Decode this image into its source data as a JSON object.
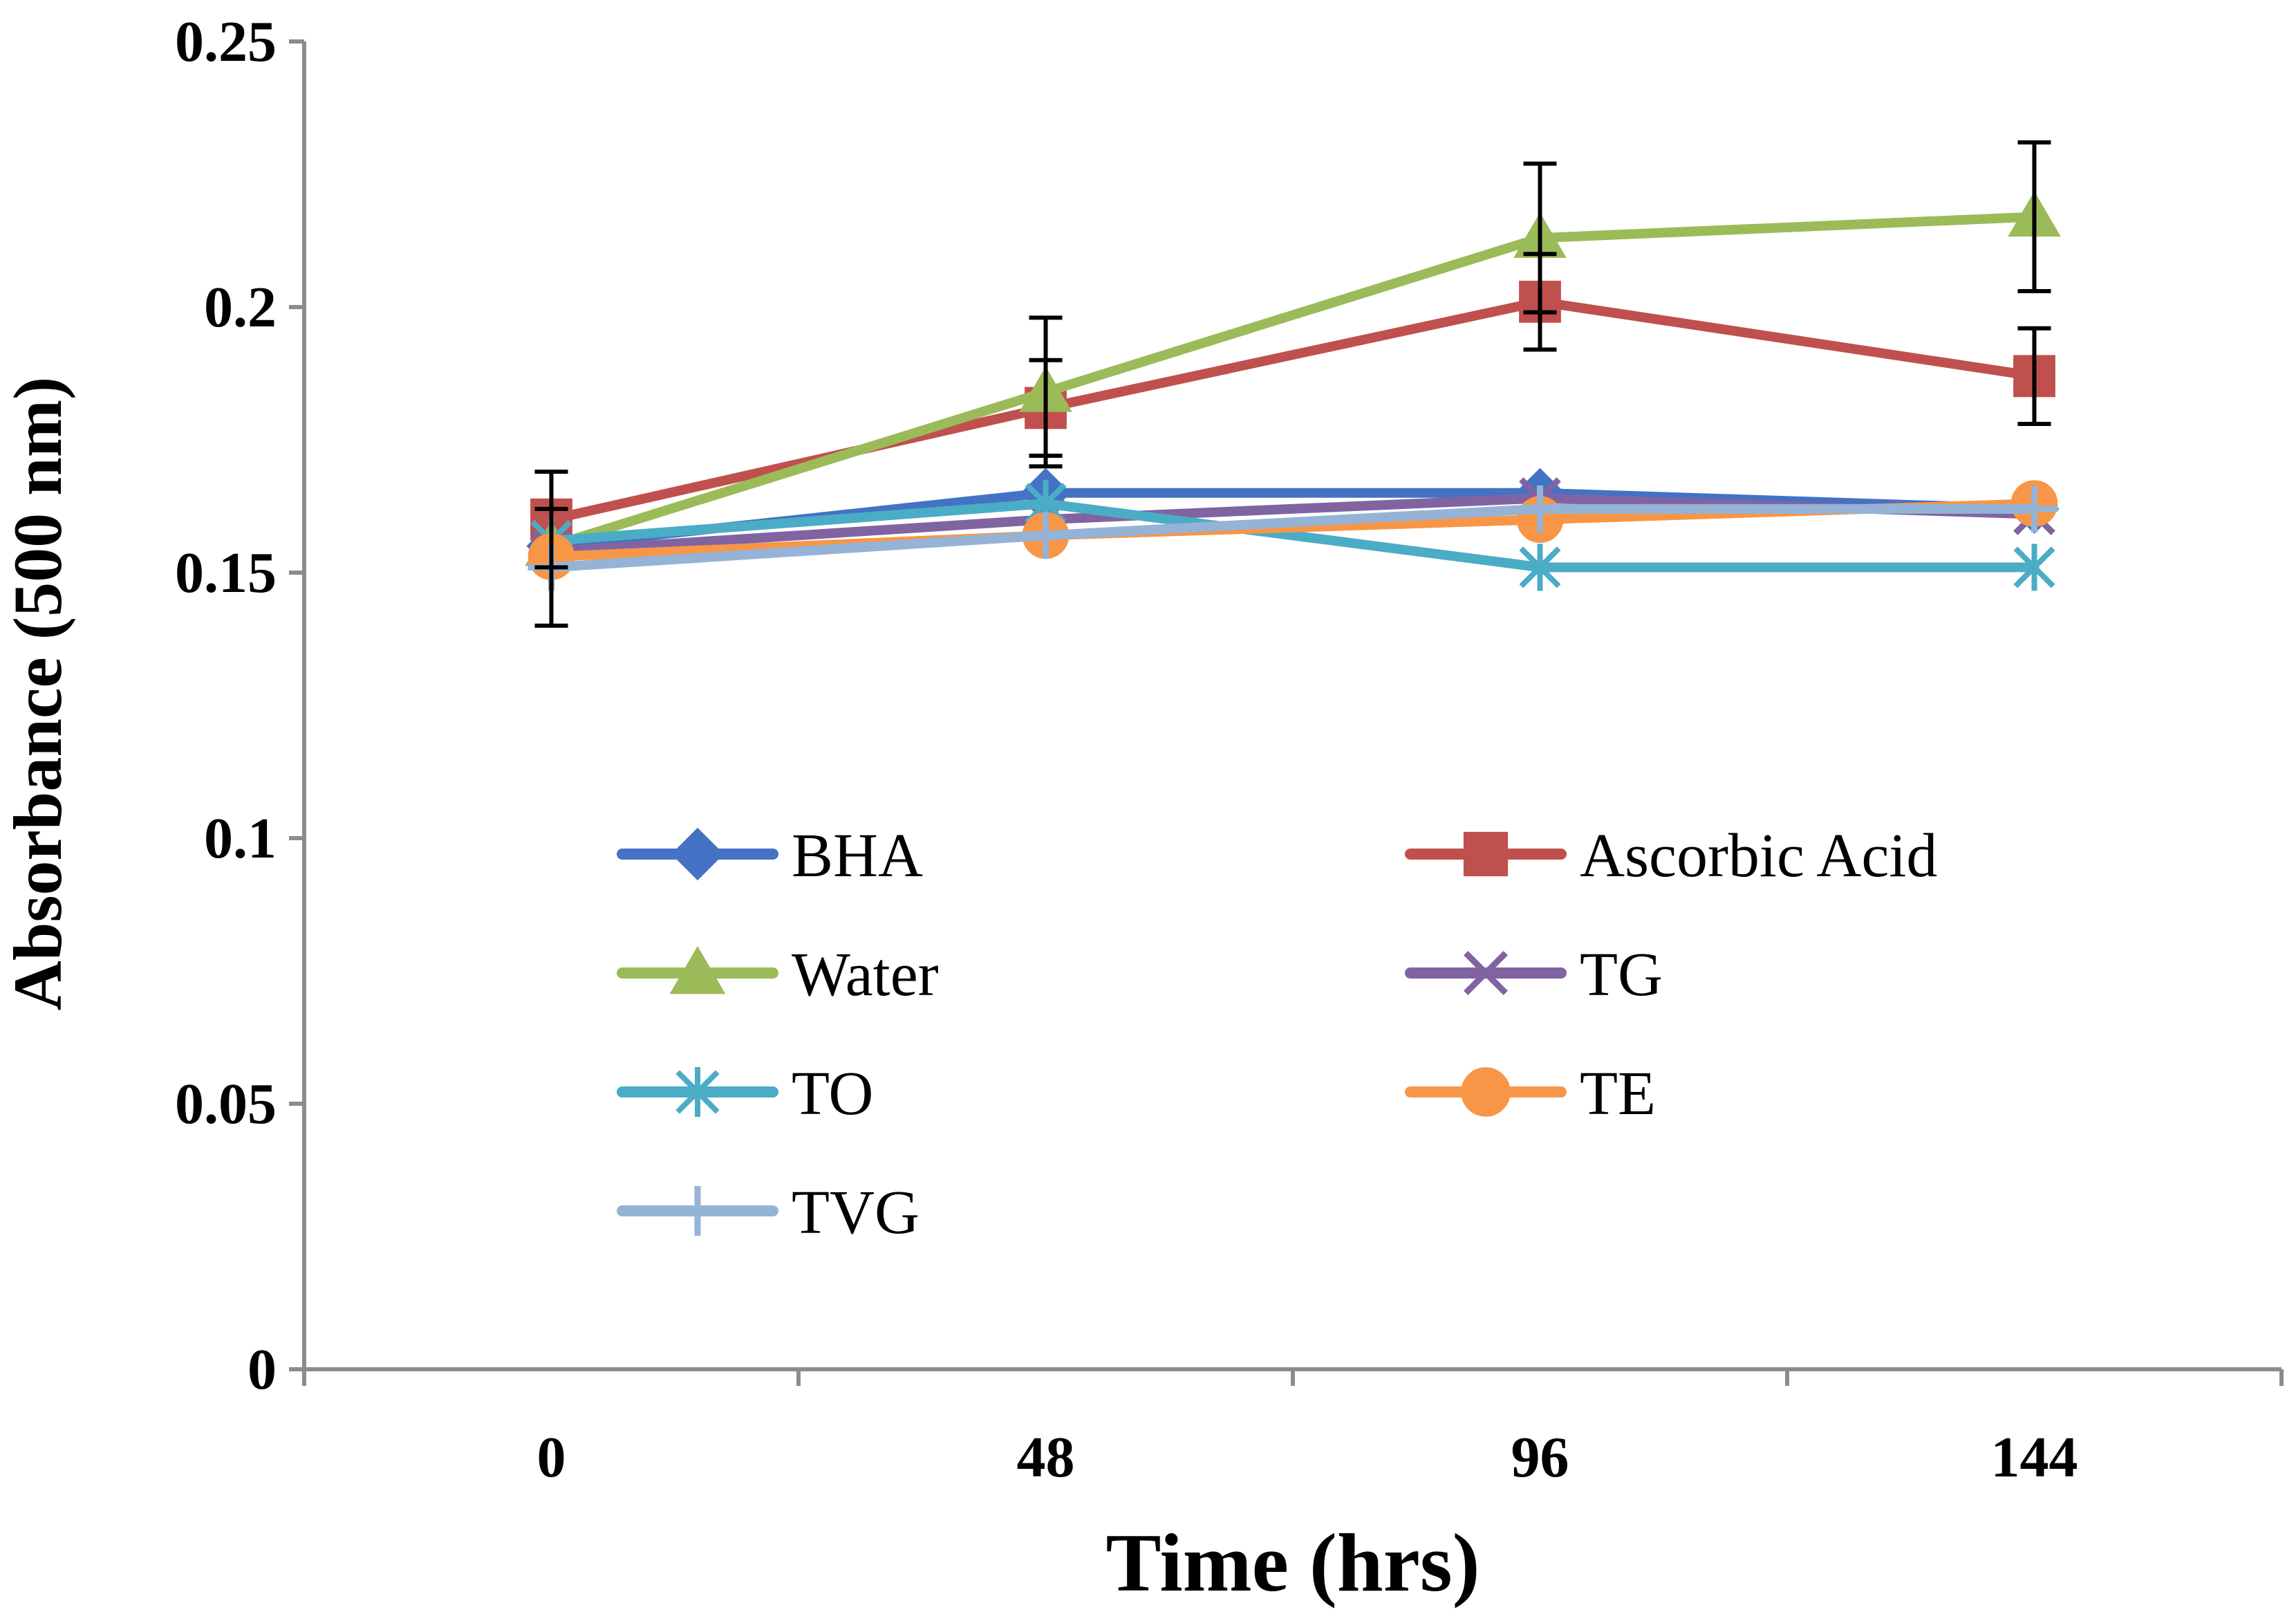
{
  "chart_data": {
    "type": "line",
    "title": "",
    "xlabel": "Time (hrs)",
    "ylabel": "Absorbance (500 nm)",
    "categories": [
      "0",
      "48",
      "96",
      "144"
    ],
    "ylim": [
      0,
      0.25
    ],
    "yticks": [
      0,
      0.05,
      0.1,
      0.15,
      0.2,
      0.25
    ],
    "ytick_labels": [
      "0",
      "0.05",
      "0.1",
      "0.15",
      "0.2",
      "0.25"
    ],
    "grid": false,
    "legend_position": "center",
    "series": [
      {
        "name": "BHA",
        "color": "#4472c4",
        "marker": "diamond",
        "values": [
          0.155,
          0.165,
          0.165,
          0.162
        ],
        "errors": [
          0,
          0,
          0,
          0
        ]
      },
      {
        "name": "Ascorbic Acid",
        "color": "#c0504d",
        "marker": "square",
        "values": [
          0.16,
          0.181,
          0.201,
          0.187
        ],
        "errors": [
          0.009,
          0.009,
          0.009,
          0.009
        ]
      },
      {
        "name": "Water",
        "color": "#9bbb59",
        "marker": "triangle",
        "values": [
          0.155,
          0.184,
          0.213,
          0.217
        ],
        "errors": [
          0,
          0.014,
          0.014,
          0.014
        ]
      },
      {
        "name": "TG",
        "color": "#8064a2",
        "marker": "x",
        "values": [
          0.154,
          0.16,
          0.164,
          0.161
        ],
        "errors": [
          0,
          0,
          0,
          0
        ]
      },
      {
        "name": "TO",
        "color": "#4bacc6",
        "marker": "star",
        "values": [
          0.156,
          0.163,
          0.151,
          0.151
        ],
        "errors": [
          0,
          0,
          0,
          0
        ]
      },
      {
        "name": "TE",
        "color": "#f79646",
        "marker": "circle",
        "values": [
          0.153,
          0.157,
          0.16,
          0.163
        ],
        "errors": [
          0,
          0,
          0,
          0
        ]
      },
      {
        "name": "TVG",
        "color": "#95b3d7",
        "marker": "plus",
        "values": [
          0.151,
          0.157,
          0.162,
          0.162
        ],
        "errors": [
          0.011,
          0,
          0,
          0
        ]
      }
    ]
  }
}
